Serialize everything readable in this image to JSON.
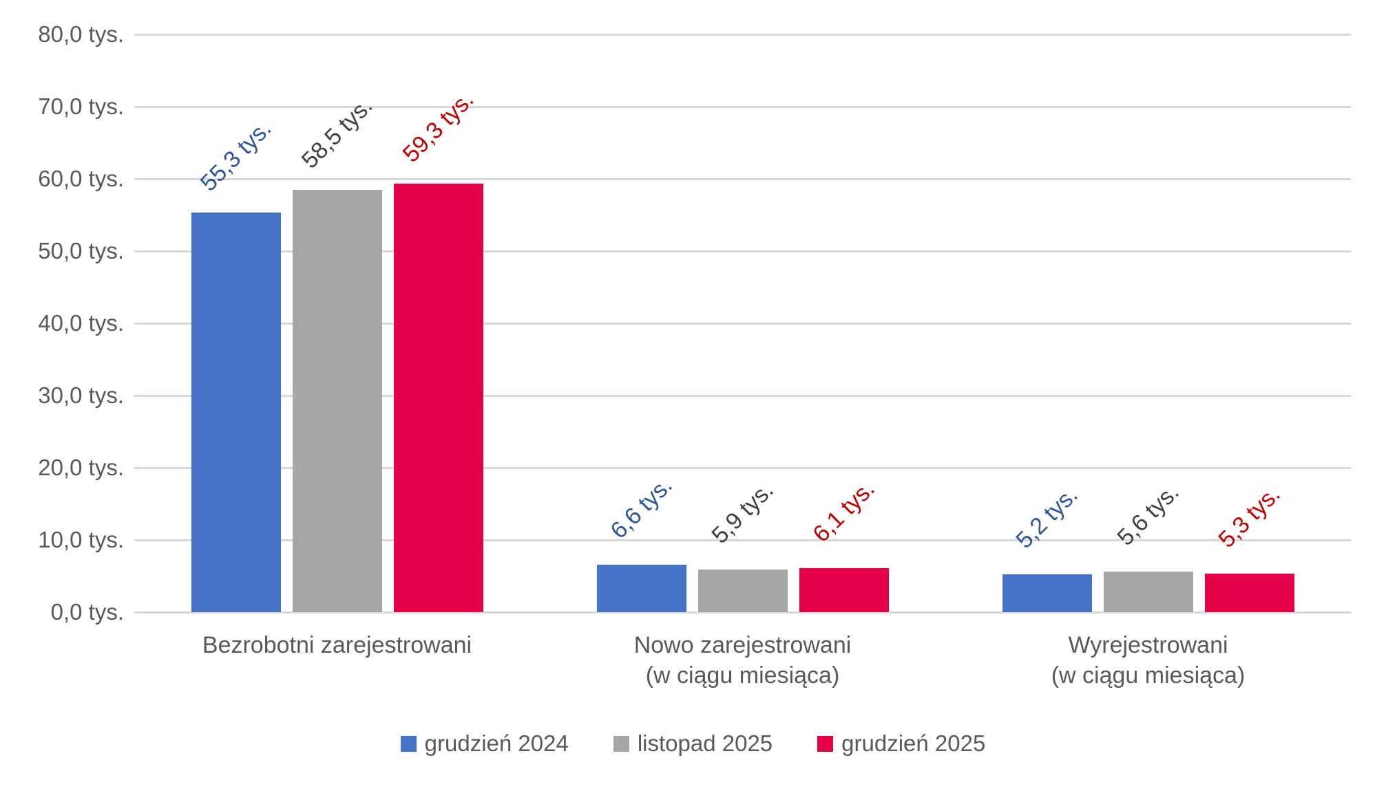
{
  "chart_data": {
    "type": "bar",
    "title": "",
    "unit": "tys.",
    "categories": [
      {
        "lines": [
          "Bezrobotni zarejestrowani"
        ]
      },
      {
        "lines": [
          "Nowo zarejestrowani",
          "(w ciągu miesiąca)"
        ]
      },
      {
        "lines": [
          "Wyrejestrowani",
          "(w ciągu miesiąca)"
        ]
      }
    ],
    "series": [
      {
        "name": "grudzień 2024",
        "color": "#4472C4",
        "label_color": "#2F5597",
        "values": [
          55.3,
          6.6,
          5.2
        ],
        "labels": [
          "55,3 tys.",
          "6,6 tys.",
          "5,2 tys."
        ]
      },
      {
        "name": "listopad 2025",
        "color": "#A6A6A6",
        "label_color": "#404040",
        "values": [
          58.5,
          5.9,
          5.6
        ],
        "labels": [
          "58,5 tys.",
          "5,9 tys.",
          "5,6 tys."
        ]
      },
      {
        "name": "grudzień 2025",
        "color": "#E40046",
        "label_color": "#C00000",
        "values": [
          59.3,
          6.1,
          5.3
        ],
        "labels": [
          "59,3 tys.",
          "6,1 tys.",
          "5,3 tys."
        ]
      }
    ],
    "y_axis": {
      "min": 0,
      "max": 80,
      "step": 10,
      "tick_labels": [
        "0,0 tys.",
        "10,0 tys.",
        "20,0 tys.",
        "30,0 tys.",
        "40,0 tys.",
        "50,0 tys.",
        "60,0 tys.",
        "70,0 tys.",
        "80,0 tys."
      ]
    },
    "legend": {
      "position": "bottom",
      "items": [
        "grudzień 2024",
        "listopad 2025",
        "grudzień 2025"
      ]
    },
    "grid": {
      "horizontal": true,
      "color": "#D9D9D9"
    },
    "text_color": "#595959"
  }
}
